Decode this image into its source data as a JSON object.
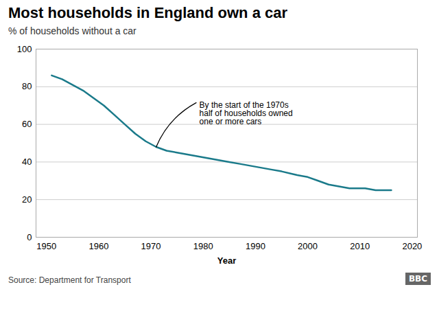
{
  "chart_data": {
    "type": "line",
    "title": "Most households in England own a car",
    "subtitle": "% of households without a car",
    "xlabel": "Year",
    "source": "Source: Department for Transport",
    "badge": "BBC",
    "x": [
      1951,
      1953,
      1955,
      1957,
      1959,
      1961,
      1963,
      1965,
      1967,
      1969,
      1971,
      1973,
      1975,
      1977,
      1979,
      1981,
      1983,
      1985,
      1987,
      1989,
      1991,
      1993,
      1995,
      1998,
      2000,
      2002,
      2004,
      2006,
      2008,
      2010,
      2011,
      2013,
      2014,
      2016
    ],
    "values": [
      86,
      84,
      81,
      78,
      74,
      70,
      65,
      60,
      55,
      51,
      48,
      46,
      45,
      44,
      43,
      42,
      41,
      40,
      39,
      38,
      37,
      36,
      35,
      33,
      32,
      30,
      28,
      27,
      26,
      26,
      26,
      25,
      25,
      25
    ],
    "color": "#1a7a8a",
    "xlim": [
      1948,
      2021
    ],
    "ylim": [
      0,
      100
    ],
    "xticks": [
      1950,
      1960,
      1970,
      1980,
      1990,
      2000,
      2010,
      2020
    ],
    "yticks": [
      0,
      20,
      40,
      60,
      80,
      100
    ],
    "grid": "y",
    "annotations": [
      {
        "text": "By the start of the 1970s\nhalf of households owned\none or more cars",
        "x": 1979,
        "y": 72,
        "arrow_x": 1971,
        "arrow_y": 48
      }
    ]
  }
}
